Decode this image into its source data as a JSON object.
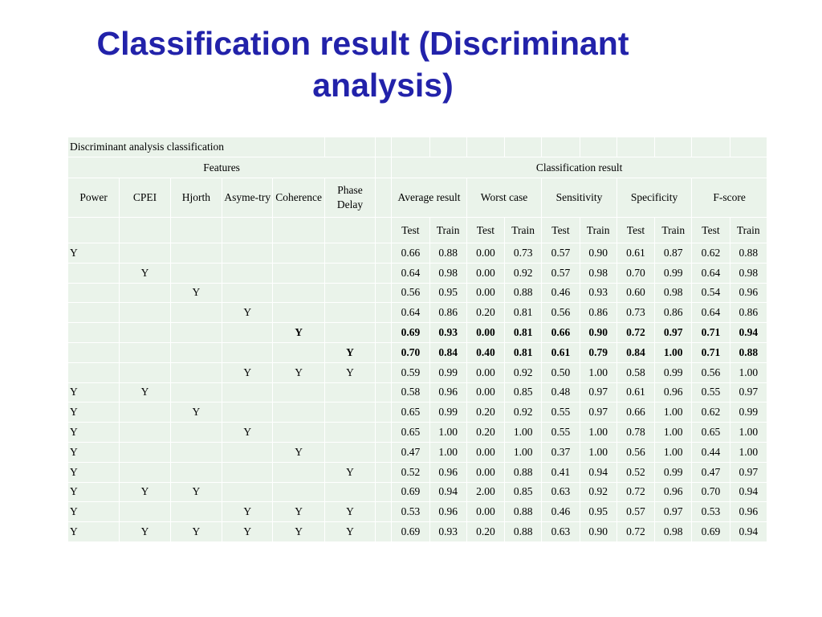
{
  "slide": {
    "title_line1": "Classification result (Discriminant",
    "title_line2": "analysis)"
  },
  "table": {
    "caption": "Discriminant analysis classification",
    "features_label": "Features",
    "result_label": "Classification result",
    "feature_headers": [
      "Power",
      "CPEI",
      "Hjorth",
      "Asyme-try",
      "Coherence",
      "Phase Delay"
    ],
    "metric_headers": [
      "Average result",
      "Worst case",
      "Sensitivity",
      "Specificity",
      "F-score"
    ],
    "test_label": "Test",
    "train_label": "Train",
    "rows": [
      {
        "features": [
          "Y",
          "",
          "",
          "",
          "",
          ""
        ],
        "values": [
          "0.66",
          "0.88",
          "0.00",
          "0.73",
          "0.57",
          "0.90",
          "0.61",
          "0.87",
          "0.62",
          "0.88"
        ],
        "bold": false
      },
      {
        "features": [
          "",
          "Y",
          "",
          "",
          "",
          ""
        ],
        "values": [
          "0.64",
          "0.98",
          "0.00",
          "0.92",
          "0.57",
          "0.98",
          "0.70",
          "0.99",
          "0.64",
          "0.98"
        ],
        "bold": false
      },
      {
        "features": [
          "",
          "",
          "Y",
          "",
          "",
          ""
        ],
        "values": [
          "0.56",
          "0.95",
          "0.00",
          "0.88",
          "0.46",
          "0.93",
          "0.60",
          "0.98",
          "0.54",
          "0.96"
        ],
        "bold": false
      },
      {
        "features": [
          "",
          "",
          "",
          "Y",
          "",
          ""
        ],
        "values": [
          "0.64",
          "0.86",
          "0.20",
          "0.81",
          "0.56",
          "0.86",
          "0.73",
          "0.86",
          "0.64",
          "0.86"
        ],
        "bold": false
      },
      {
        "features": [
          "",
          "",
          "",
          "",
          "Y",
          ""
        ],
        "values": [
          "0.69",
          "0.93",
          "0.00",
          "0.81",
          "0.66",
          "0.90",
          "0.72",
          "0.97",
          "0.71",
          "0.94"
        ],
        "bold": true
      },
      {
        "features": [
          "",
          "",
          "",
          "",
          "",
          "Y"
        ],
        "values": [
          "0.70",
          "0.84",
          "0.40",
          "0.81",
          "0.61",
          "0.79",
          "0.84",
          "1.00",
          "0.71",
          "0.88"
        ],
        "bold": true
      },
      {
        "features": [
          "",
          "",
          "",
          "Y",
          "Y",
          "Y"
        ],
        "values": [
          "0.59",
          "0.99",
          "0.00",
          "0.92",
          "0.50",
          "1.00",
          "0.58",
          "0.99",
          "0.56",
          "1.00"
        ],
        "bold": false
      },
      {
        "features": [
          "Y",
          "Y",
          "",
          "",
          "",
          ""
        ],
        "values": [
          "0.58",
          "0.96",
          "0.00",
          "0.85",
          "0.48",
          "0.97",
          "0.61",
          "0.96",
          "0.55",
          "0.97"
        ],
        "bold": false
      },
      {
        "features": [
          "Y",
          "",
          "Y",
          "",
          "",
          ""
        ],
        "values": [
          "0.65",
          "0.99",
          "0.20",
          "0.92",
          "0.55",
          "0.97",
          "0.66",
          "1.00",
          "0.62",
          "0.99"
        ],
        "bold": false
      },
      {
        "features": [
          "Y",
          "",
          "",
          "Y",
          "",
          ""
        ],
        "values": [
          "0.65",
          "1.00",
          "0.20",
          "1.00",
          "0.55",
          "1.00",
          "0.78",
          "1.00",
          "0.65",
          "1.00"
        ],
        "bold": false
      },
      {
        "features": [
          "Y",
          "",
          "",
          "",
          "Y",
          ""
        ],
        "values": [
          "0.47",
          "1.00",
          "0.00",
          "1.00",
          "0.37",
          "1.00",
          "0.56",
          "1.00",
          "0.44",
          "1.00"
        ],
        "bold": false
      },
      {
        "features": [
          "Y",
          "",
          "",
          "",
          "",
          "Y"
        ],
        "values": [
          "0.52",
          "0.96",
          "0.00",
          "0.88",
          "0.41",
          "0.94",
          "0.52",
          "0.99",
          "0.47",
          "0.97"
        ],
        "bold": false
      },
      {
        "features": [
          "Y",
          "Y",
          "Y",
          "",
          "",
          ""
        ],
        "values": [
          "0.69",
          "0.94",
          "2.00",
          "0.85",
          "0.63",
          "0.92",
          "0.72",
          "0.96",
          "0.70",
          "0.94"
        ],
        "bold": false
      },
      {
        "features": [
          "Y",
          "",
          "",
          "Y",
          "Y",
          "Y"
        ],
        "values": [
          "0.53",
          "0.96",
          "0.00",
          "0.88",
          "0.46",
          "0.95",
          "0.57",
          "0.97",
          "0.53",
          "0.96"
        ],
        "bold": false
      },
      {
        "features": [
          "Y",
          "Y",
          "Y",
          "Y",
          "Y",
          "Y"
        ],
        "values": [
          "0.69",
          "0.93",
          "0.20",
          "0.88",
          "0.63",
          "0.90",
          "0.72",
          "0.98",
          "0.69",
          "0.94"
        ],
        "bold": false
      }
    ]
  }
}
